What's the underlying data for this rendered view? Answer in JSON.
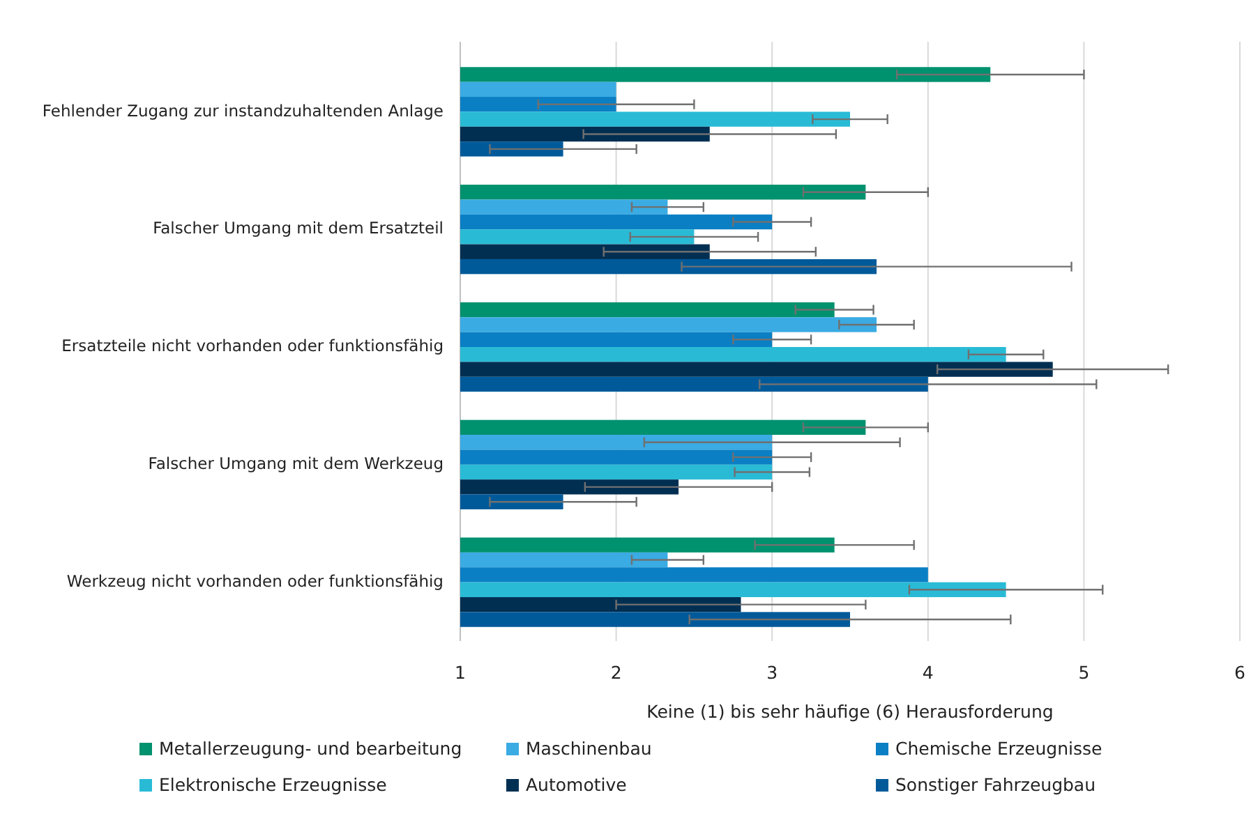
{
  "chart_data": {
    "type": "bar",
    "orientation": "horizontal",
    "xlabel": "Keine (1) bis sehr häufige (6) Herausforderung",
    "categories": [
      "Fehlender Zugang zur instandzuhaltenden Anlage",
      "Falscher Umgang mit dem Ersatzteil",
      "Ersatzteile nicht vorhanden oder funktionsfähig",
      "Falscher Umgang mit dem Werkzeug",
      "Werkzeug nicht vorhanden oder funktionsfähig"
    ],
    "series": [
      {
        "name": "Metallerzeugung- und bearbeitung",
        "color": "#00916e",
        "values": [
          4.4,
          3.6,
          3.4,
          3.6,
          3.4
        ],
        "errors": [
          0.6,
          0.4,
          0.25,
          0.4,
          0.51
        ]
      },
      {
        "name": "Maschinenbau",
        "color": "#3aabe3",
        "values": [
          2.0,
          2.33,
          3.67,
          3.0,
          2.33
        ],
        "errors": [
          null,
          0.23,
          0.24,
          0.82,
          0.23
        ]
      },
      {
        "name": "Chemische Erzeugnisse",
        "color": "#0a7fc4",
        "values": [
          2.0,
          3.0,
          3.0,
          3.0,
          4.0
        ],
        "errors": [
          0.5,
          0.25,
          0.25,
          0.25,
          null
        ]
      },
      {
        "name": "Elektronische Erzeugnisse",
        "color": "#29bbd6",
        "values": [
          3.5,
          2.5,
          4.5,
          3.0,
          4.5
        ],
        "errors": [
          0.24,
          0.41,
          0.24,
          0.24,
          0.62
        ]
      },
      {
        "name": "Automotive",
        "color": "#002f52",
        "values": [
          2.6,
          2.6,
          4.8,
          2.4,
          2.8
        ],
        "errors": [
          0.81,
          0.68,
          0.74,
          0.6,
          0.8
        ]
      },
      {
        "name": "Sonstiger Fahrzeugbau",
        "color": "#005a9a",
        "values": [
          1.66,
          3.67,
          4.0,
          1.66,
          3.5
        ],
        "errors": [
          0.47,
          1.25,
          1.08,
          0.47,
          1.03
        ]
      }
    ],
    "xlim": [
      1,
      6
    ],
    "xticks": [
      1,
      2,
      3,
      4,
      5,
      6
    ],
    "grid": "x",
    "legend": "bottom"
  }
}
